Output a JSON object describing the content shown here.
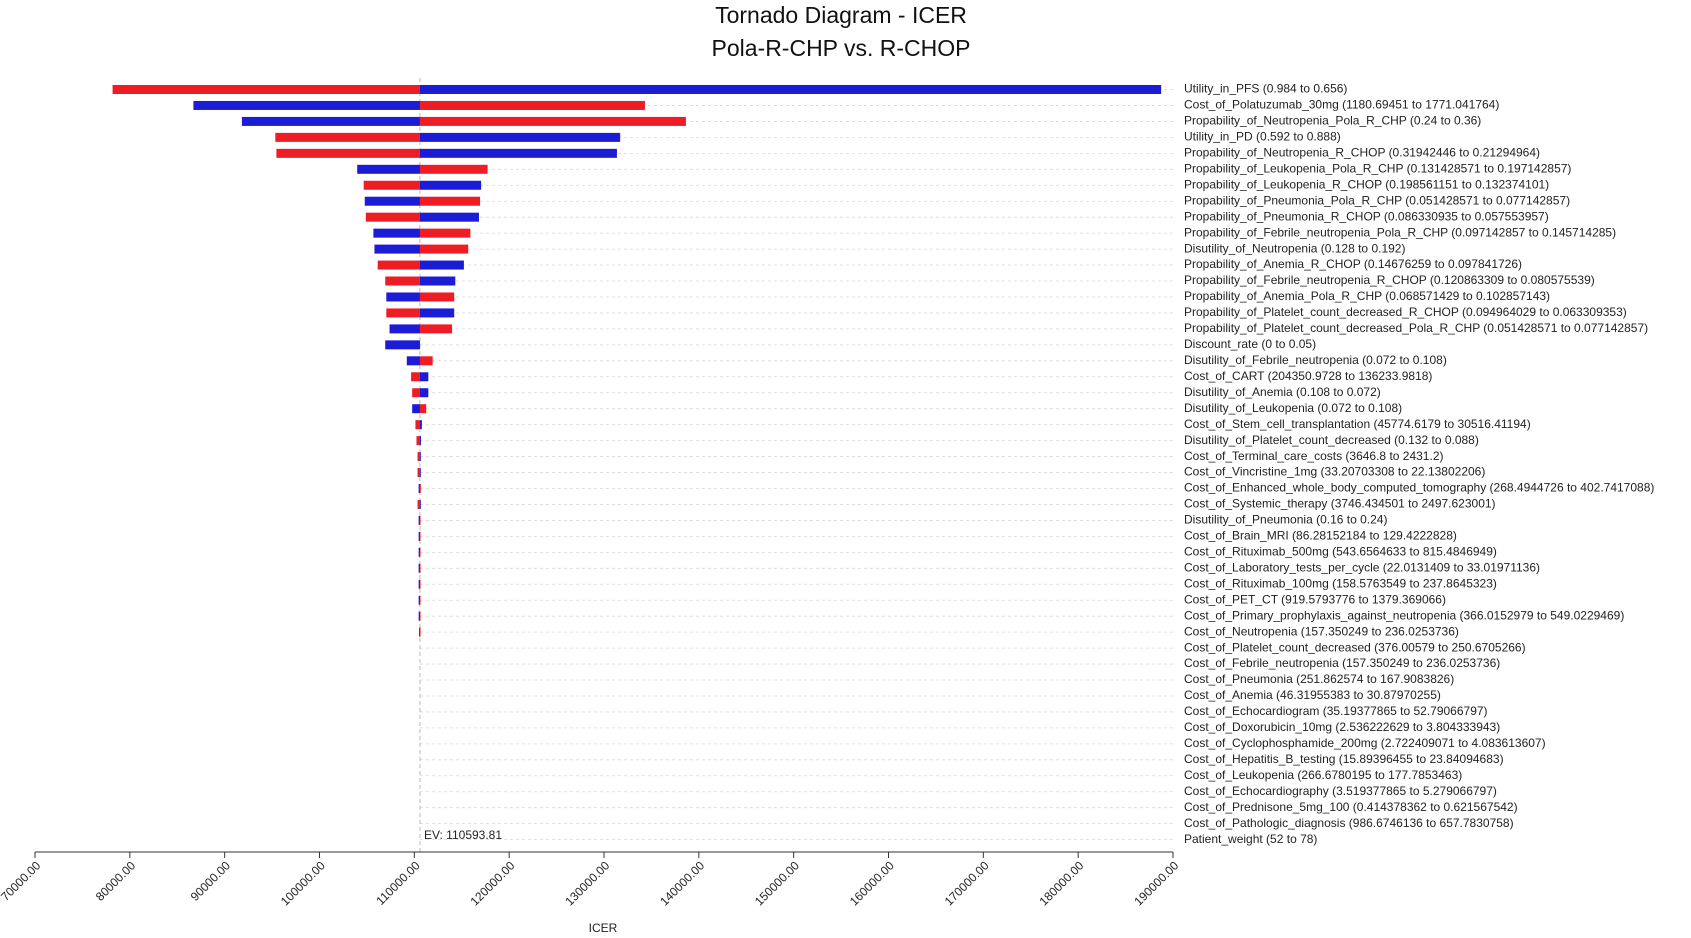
{
  "chart_data": {
    "type": "tornado",
    "title": "Tornado Diagram - ICER",
    "subtitle": "Pola-R-CHP vs. R-CHOP",
    "xlabel": "ICER",
    "ev": {
      "value": 110593.81,
      "label": "EV: 110593.81"
    },
    "xlim": [
      70000,
      190000
    ],
    "xticks": [
      {
        "value": 70000,
        "label": "70000.00"
      },
      {
        "value": 80000,
        "label": "80000.00"
      },
      {
        "value": 90000,
        "label": "90000.00"
      },
      {
        "value": 100000,
        "label": "100000.00"
      },
      {
        "value": 110000,
        "label": "110000.00"
      },
      {
        "value": 120000,
        "label": "120000.00"
      },
      {
        "value": 130000,
        "label": "130000.00"
      },
      {
        "value": 140000,
        "label": "140000.00"
      },
      {
        "value": 150000,
        "label": "150000.00"
      },
      {
        "value": 160000,
        "label": "160000.00"
      },
      {
        "value": 170000,
        "label": "170000.00"
      },
      {
        "value": 180000,
        "label": "180000.00"
      },
      {
        "value": 190000,
        "label": "190000.00"
      }
    ],
    "categories": [
      "Utility_in_PFS (0.984 to 0.656)",
      "Cost_of_Polatuzumab_30mg (1180.69451 to 1771.041764)",
      "Propability_of_Neutropenia_Pola_R_CHP (0.24 to 0.36)",
      "Utility_in_PD (0.592 to 0.888)",
      "Propability_of_Neutropenia_R_CHOP (0.31942446 to 0.21294964)",
      "Propability_of_Leukopenia_Pola_R_CHP (0.131428571 to 0.197142857)",
      "Propability_of_Leukopenia_R_CHOP (0.198561151 to 0.132374101)",
      "Propability_of_Pneumonia_Pola_R_CHP (0.051428571 to 0.077142857)",
      "Propability_of_Pneumonia_R_CHOP (0.086330935 to 0.057553957)",
      "Propability_of_Febrile_neutropenia_Pola_R_CHP (0.097142857 to 0.145714285)",
      "Disutility_of_Neutropenia (0.128 to 0.192)",
      "Propability_of_Anemia_R_CHOP (0.14676259 to 0.097841726)",
      "Propability_of_Febrile_neutropenia_R_CHOP (0.120863309 to 0.080575539)",
      "Propability_of_Anemia_Pola_R_CHP (0.068571429 to 0.102857143)",
      "Propability_of_Platelet_count_decreased_R_CHOP (0.094964029 to 0.063309353)",
      "Propability_of_Platelet_count_decreased_Pola_R_CHP (0.051428571 to 0.077142857)",
      "Discount_rate (0 to 0.05)",
      "Disutility_of_Febrile_neutropenia (0.072 to 0.108)",
      "Cost_of_CART (204350.9728 to 136233.9818)",
      "Disutility_of_Anemia (0.108 to 0.072)",
      "Disutility_of_Leukopenia (0.072 to 0.108)",
      "Cost_of_Stem_cell_transplantation (45774.6179 to 30516.41194)",
      "Disutility_of_Platelet_count_decreased (0.132 to 0.088)",
      "Cost_of_Terminal_care_costs (3646.8 to 2431.2)",
      "Cost_of_Vincristine_1mg (33.20703308 to 22.13802206)",
      "Cost_of_Enhanced_whole_body_computed_tomography (268.4944726 to 402.7417088)",
      "Cost_of_Systemic_therapy (3746.434501 to 2497.623001)",
      "Disutility_of_Pneumonia (0.16 to 0.24)",
      "Cost_of_Brain_MRI (86.28152184 to 129.4222828)",
      "Cost_of_Rituximab_500mg (543.6564633 to 815.4846949)",
      "Cost_of_Laboratory_tests_per_cycle (22.0131409 to 33.01971136)",
      "Cost_of_Rituximab_100mg (158.5763549 to 237.8645323)",
      "Cost_of_PET_CT (919.5793776 to 1379.369066)",
      "Cost_of_Primary_prophylaxis_against_neutropenia (366.0152979 to 549.0229469)",
      "Cost_of_Neutropenia (157.350249 to 236.0253736)",
      "Cost_of_Platelet_count_decreased (376.00579 to 250.6705266)",
      "Cost_of_Febrile_neutropenia (157.350249 to 236.0253736)",
      "Cost_of_Pneumonia (251.862574 to 167.9083826)",
      "Cost_of_Anemia (46.31955383 to 30.87970255)",
      "Cost_of_Echocardiogram (35.19377865 to 52.79066797)",
      "Cost_of_Doxorubicin_10mg (2.536222629 to 3.804333943)",
      "Cost_of_Cyclophosphamide_200mg (2.722409071 to 4.083613607)",
      "Cost_of_Hepatitis_B_testing (15.89396455 to 23.84094683)",
      "Cost_of_Leukopenia (266.6780195 to 177.7853463)",
      "Cost_of_Echocardiography (3.519377865 to 5.279066797)",
      "Cost_of_Prednisone_5mg_100 (0.414378362 to 0.621567542)",
      "Cost_of_Pathologic_diagnosis (986.6746136 to 657.7830758)",
      "Patient_weight (52 to 78)"
    ],
    "series": [
      {
        "color": "#ee1c24",
        "values": [
          78182,
          134318,
          138636,
          95341,
          95455,
          117727,
          104659,
          116932,
          104886,
          115909,
          115682,
          106136,
          106932,
          114205,
          107045,
          113977,
          110594,
          111932,
          109659,
          109773,
          111250,
          110114,
          110227,
          110341,
          110341,
          110680,
          110341,
          110650,
          110650,
          110650,
          110650,
          110650,
          110650,
          110650,
          110650,
          110593.81,
          110593.81,
          110593.81,
          110593.81,
          110593.81,
          110593.81,
          110593.81,
          110593.81,
          110593.81,
          110593.81,
          110593.81,
          110593.81,
          110593.81
        ]
      },
      {
        "color": "#1c1cd6",
        "values": [
          188750,
          86705,
          91818,
          131705,
          131364,
          103977,
          117045,
          104773,
          116818,
          105682,
          105795,
          115227,
          114318,
          107045,
          114205,
          107386,
          106932,
          109205,
          111477,
          111477,
          109773,
          110795,
          110700,
          110680,
          110680,
          110455,
          110680,
          110455,
          110455,
          110455,
          110455,
          110455,
          110455,
          110455,
          110500,
          110593.81,
          110593.81,
          110593.81,
          110593.81,
          110593.81,
          110593.81,
          110593.81,
          110593.81,
          110593.81,
          110593.81,
          110593.81,
          110593.81,
          110593.81
        ]
      }
    ]
  }
}
